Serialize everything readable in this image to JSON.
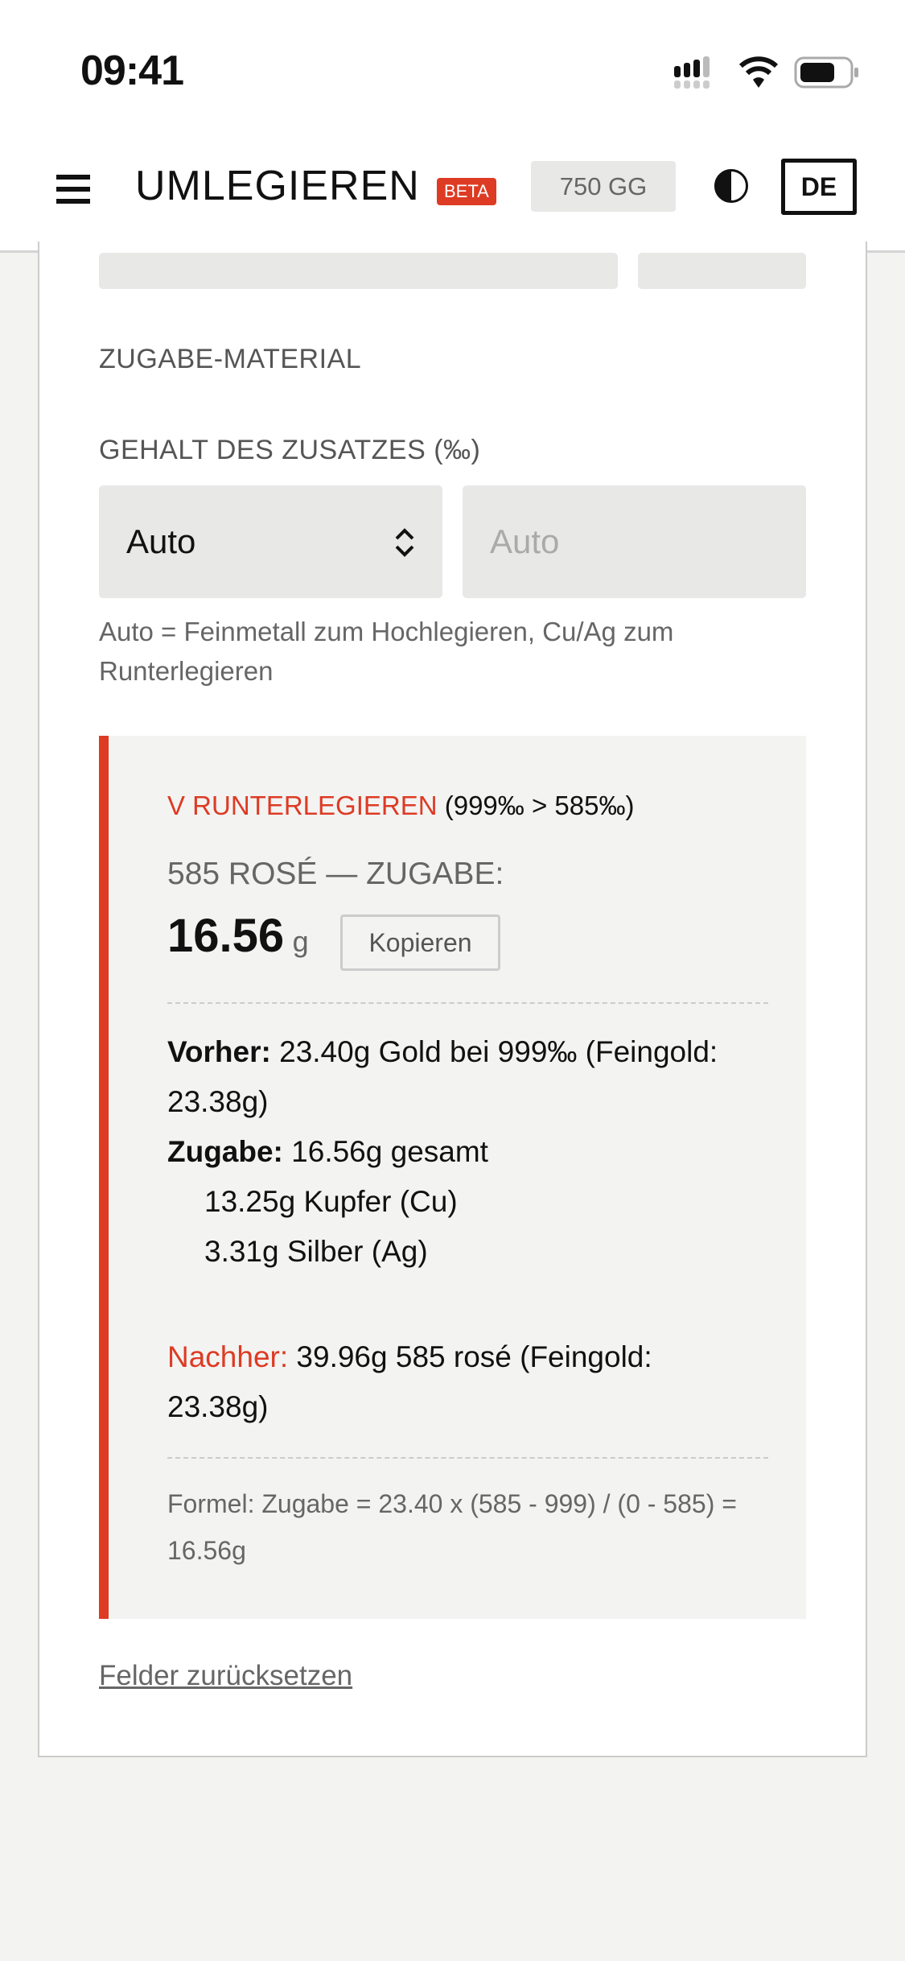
{
  "status_bar": {
    "time": "09:41"
  },
  "header": {
    "title": "UMLEGIEREN",
    "beta": "BETA",
    "gg": "750 GG",
    "lang": "DE"
  },
  "form": {
    "material_label": "ZUGABE-MATERIAL",
    "content_label": "GEHALT DES ZUSATZES (‰)",
    "select_value": "Auto",
    "input_placeholder": "Auto",
    "help": "Auto = Feinmetall zum Hochlegieren, Cu/Ag zum Runterlegieren"
  },
  "result": {
    "mode": "V RUNTERLEGIEREN",
    "mode_detail": "(999‰ > 585‰)",
    "subtitle": "585 ROSÉ — ZUGABE:",
    "value": "16.56",
    "unit": "g",
    "copy": "Kopieren",
    "before_label": "Vorher:",
    "before": "23.40g Gold bei 999‰ (Feingold: 23.38g)",
    "addition_label": "Zugabe:",
    "addition": "16.56g gesamt",
    "copper": "13.25g Kupfer (Cu)",
    "silver": "3.31g Silber (Ag)",
    "after_label": "Nachher:",
    "after": "39.96g 585 rosé (Feingold: 23.38g)",
    "formula": "Formel: Zugabe = 23.40 x (585 - 999) / (0 - 585) = 16.56g",
    "accent": "#dd3b24"
  },
  "reset": "Felder zurücksetzen"
}
